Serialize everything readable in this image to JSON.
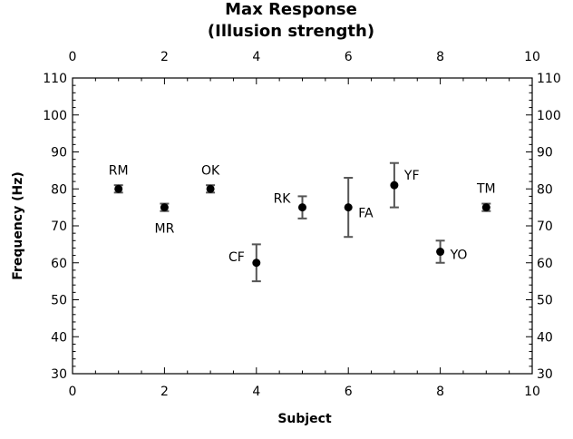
{
  "chart_data": {
    "type": "scatter",
    "title": [
      "Max Response",
      "(Illusion strength)"
    ],
    "xlabel": "Subject",
    "ylabel": "Frequency (Hz)",
    "xlim": [
      0,
      10
    ],
    "ylim": [
      30,
      110
    ],
    "x_ticks": [
      0,
      2,
      4,
      6,
      8,
      10
    ],
    "y_ticks": [
      30,
      40,
      50,
      60,
      70,
      80,
      90,
      100,
      110
    ],
    "grid": false,
    "points": [
      {
        "x": 1,
        "y": 80,
        "err": 1,
        "label": "RM",
        "label_pos": "above"
      },
      {
        "x": 2,
        "y": 75,
        "err": 1,
        "label": "MR",
        "label_pos": "below"
      },
      {
        "x": 3,
        "y": 80,
        "err": 1,
        "label": "OK",
        "label_pos": "above"
      },
      {
        "x": 4,
        "y": 60,
        "err": 5,
        "label": "CF",
        "label_pos": "left"
      },
      {
        "x": 5,
        "y": 75,
        "err": 3,
        "label": "RK",
        "label_pos": "left"
      },
      {
        "x": 6,
        "y": 75,
        "err": 8,
        "label": "FA",
        "label_pos": "right"
      },
      {
        "x": 7,
        "y": 81,
        "err": 6,
        "label": "YF",
        "label_pos": "right"
      },
      {
        "x": 8,
        "y": 63,
        "err": 3,
        "label": "YO",
        "label_pos": "right"
      },
      {
        "x": 9,
        "y": 75,
        "err": 1,
        "label": "TM",
        "label_pos": "above"
      }
    ],
    "marker_color": "#000000",
    "errorbar_color": "#555555"
  }
}
